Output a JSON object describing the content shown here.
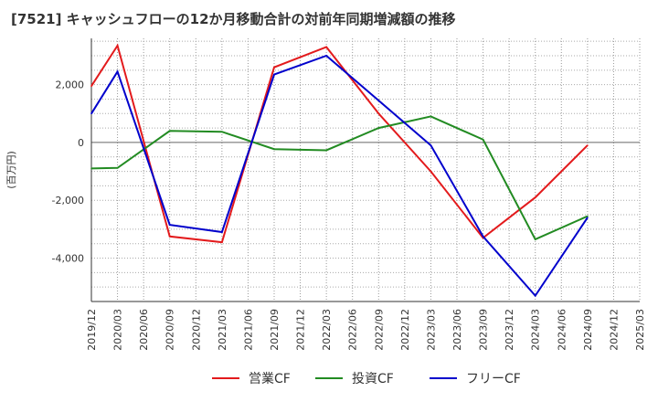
{
  "chart_data": {
    "type": "line",
    "title": "[7521]  キャッシュフローの12か月移動合計の対前年同期増減額の推移",
    "ylabel": "(百万円)",
    "xlabel": "",
    "ylim": [
      -5500,
      3600
    ],
    "yticks": [
      2000,
      0,
      -2000,
      -4000
    ],
    "ytick_labels": [
      "2,000",
      "0",
      "-2,000",
      "-4,000"
    ],
    "categories": [
      "2019/12",
      "2020/03",
      "2020/06",
      "2020/09",
      "2020/12",
      "2021/03",
      "2021/06",
      "2021/09",
      "2021/12",
      "2022/03",
      "2022/06",
      "2022/09",
      "2022/12",
      "2023/03",
      "2023/06",
      "2023/09",
      "2023/12",
      "2024/03",
      "2024/06",
      "2024/09",
      "2024/12",
      "2025/03"
    ],
    "grid": true,
    "legend_position": "bottom",
    "series": [
      {
        "name": "営業CF",
        "color": "#e31a1c",
        "values": [
          1950,
          3350,
          null,
          -3250,
          null,
          -3450,
          null,
          2600,
          null,
          3300,
          null,
          1000,
          null,
          -1000,
          null,
          -3300,
          null,
          -1900,
          null,
          -100,
          null,
          null
        ]
      },
      {
        "name": "投資CF",
        "color": "#228b22",
        "values": [
          -900,
          -880,
          null,
          400,
          null,
          370,
          null,
          -230,
          null,
          -270,
          null,
          500,
          null,
          900,
          null,
          100,
          null,
          -3350,
          null,
          -2550,
          null,
          null
        ]
      },
      {
        "name": "フリーCF",
        "color": "#0000cc",
        "values": [
          1000,
          2450,
          null,
          -2850,
          null,
          -3100,
          null,
          2350,
          null,
          3000,
          null,
          1450,
          null,
          -100,
          null,
          -3250,
          null,
          -5300,
          null,
          -2600,
          null,
          null
        ]
      }
    ]
  }
}
